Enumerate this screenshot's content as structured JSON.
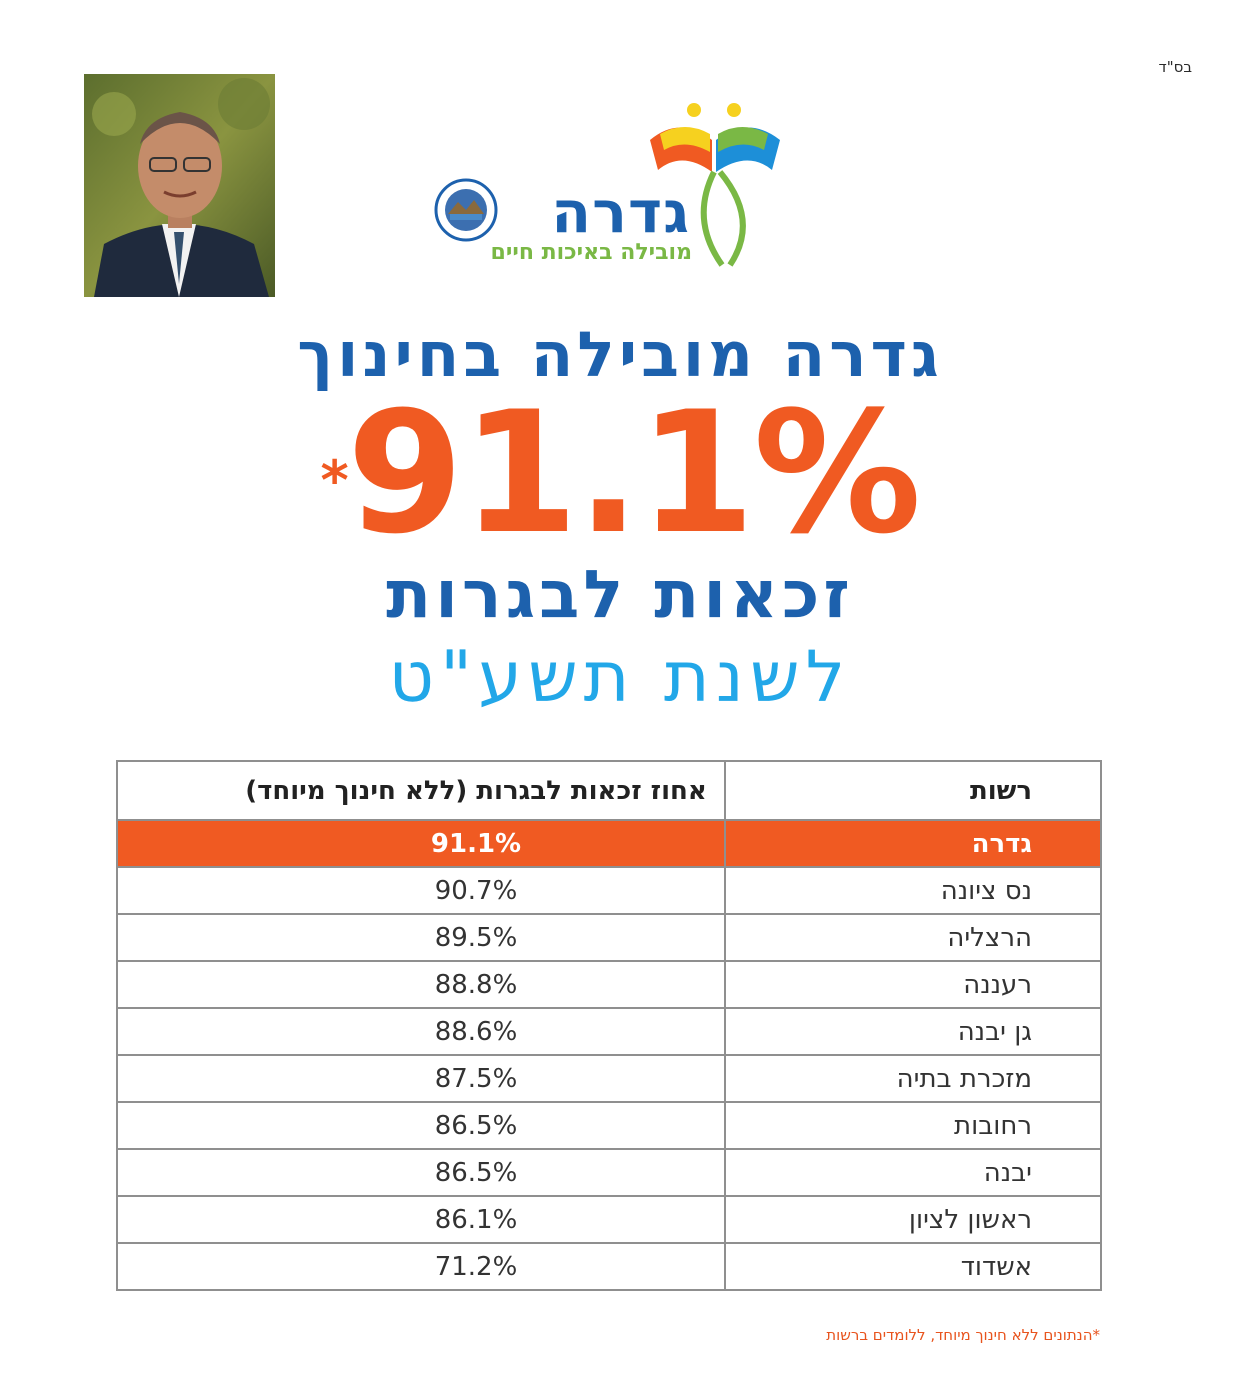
{
  "header": {
    "bsd": "בס\"ד"
  },
  "logo": {
    "name": "גדרה",
    "tagline": "מובילה באיכות חיים"
  },
  "headline": {
    "line1": "גדרה מובילה בחינוך",
    "percent": "91.1%",
    "star": "*",
    "line3": "זכאות לבגרות",
    "line4": "לשנת תשע\"ט"
  },
  "table": {
    "headers": {
      "authority": "רשות",
      "percent": "אחוז זכאות לבגרות (ללא חינוך מיוחד)"
    },
    "rows": [
      {
        "authority": "גדרה",
        "percent": "91.1%"
      },
      {
        "authority": "נס ציונה",
        "percent": "90.7%"
      },
      {
        "authority": "הרצליה",
        "percent": "89.5%"
      },
      {
        "authority": "רעננה",
        "percent": "88.8%"
      },
      {
        "authority": "גן יבנה",
        "percent": "88.6%"
      },
      {
        "authority": "מזכרת בתיה",
        "percent": "87.5%"
      },
      {
        "authority": "רחובות",
        "percent": "86.5%"
      },
      {
        "authority": "יבנה",
        "percent": "86.5%"
      },
      {
        "authority": "ראשון לציון",
        "percent": "86.1%"
      },
      {
        "authority": "אשדוד",
        "percent": "71.2%"
      }
    ]
  },
  "footnote": "*הנתונים ללא חינוך מיוחד, ללומדים ברשות",
  "colors": {
    "orange": "#f05a22",
    "blue": "#1d61ad",
    "lightblue": "#22a7e8",
    "green": "#7ab845"
  }
}
